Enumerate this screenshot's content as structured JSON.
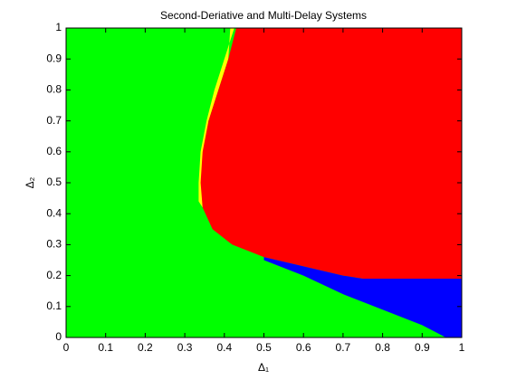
{
  "chart_data": {
    "type": "region",
    "title": "Second-Deriative and Multi-Delay Systems",
    "xlabel": "Δ₁",
    "ylabel": "Δ₂",
    "background": "#00ff00",
    "xlim": [
      0,
      1
    ],
    "ylim": [
      0,
      1
    ],
    "xticks": [
      0,
      0.1,
      0.2,
      0.3,
      0.4,
      0.5,
      0.6,
      0.7,
      0.8,
      0.9,
      1
    ],
    "yticks": [
      0,
      0.1,
      0.2,
      0.3,
      0.4,
      0.5,
      0.6,
      0.7,
      0.8,
      0.9,
      1
    ],
    "regions": [
      {
        "color": "#ffff00",
        "x": [
          0.415,
          0.425,
          0.4,
          0.375,
          0.355,
          0.34,
          0.335,
          0.335,
          0.345,
          0.355,
          0.35,
          0.36,
          0.385,
          0.41
        ],
        "y": [
          1,
          1,
          0.9,
          0.8,
          0.7,
          0.6,
          0.5,
          0.44,
          0.42,
          0.5,
          0.6,
          0.7,
          0.8,
          0.9
        ]
      },
      {
        "color": "#ff0000",
        "x": [
          0.43,
          1,
          1,
          0.75,
          0.7,
          0.6,
          0.5,
          0.42,
          0.37,
          0.345,
          0.34,
          0.345,
          0.36,
          0.385,
          0.41
        ],
        "y": [
          1,
          1,
          0.19,
          0.19,
          0.2,
          0.23,
          0.26,
          0.3,
          0.35,
          0.42,
          0.5,
          0.6,
          0.7,
          0.8,
          0.9
        ]
      },
      {
        "color": "#0000ff",
        "x": [
          0.5,
          0.6,
          0.7,
          0.75,
          1,
          1,
          0.96,
          0.9,
          0.8,
          0.7,
          0.6,
          0.5
        ],
        "y": [
          0.26,
          0.23,
          0.2,
          0.19,
          0.19,
          0,
          0,
          0.04,
          0.09,
          0.14,
          0.2,
          0.25
        ]
      }
    ]
  }
}
